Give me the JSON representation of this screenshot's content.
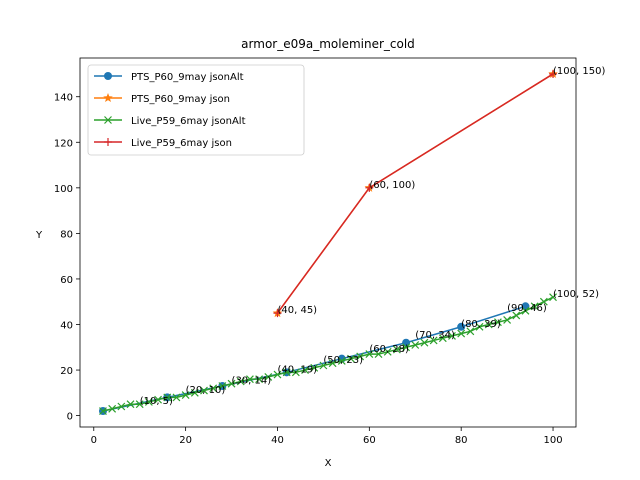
{
  "chart_data": {
    "type": "line",
    "title": "armor_e09a_moleminer_cold",
    "xlabel": "X",
    "ylabel": "Y",
    "xlim": [
      -3,
      105
    ],
    "ylim": [
      -5,
      157
    ],
    "xticks": [
      0,
      20,
      40,
      60,
      80,
      100
    ],
    "yticks": [
      0,
      20,
      40,
      60,
      80,
      100,
      120,
      140
    ],
    "grid": false,
    "legend_position": "upper-left",
    "series": [
      {
        "name": "PTS_P60_9may jsonAlt",
        "color": "#1f77b4",
        "marker": "circle",
        "x": [
          2,
          16,
          28,
          42,
          54,
          68,
          80,
          94
        ],
        "y": [
          2,
          8,
          13,
          19,
          25,
          32,
          39,
          48
        ]
      },
      {
        "name": "PTS_P60_9may json",
        "color": "#ff7f0e",
        "marker": "star",
        "x": [
          40,
          60,
          100
        ],
        "y": [
          45,
          100,
          150
        ]
      },
      {
        "name": "Live_P59_6may jsonAlt",
        "color": "#2ca02c",
        "marker": "x",
        "x": [
          2,
          4,
          6,
          8,
          10,
          12,
          14,
          16,
          18,
          20,
          22,
          24,
          26,
          28,
          30,
          32,
          34,
          36,
          38,
          40,
          42,
          44,
          46,
          48,
          50,
          52,
          54,
          56,
          58,
          60,
          62,
          64,
          66,
          68,
          70,
          72,
          74,
          76,
          78,
          80,
          82,
          84,
          86,
          88,
          90,
          92,
          94,
          96,
          98,
          100
        ],
        "y": [
          2,
          3,
          4,
          5,
          5,
          6,
          7,
          8,
          8,
          9,
          10,
          11,
          12,
          13,
          14,
          15,
          16,
          16,
          17,
          18,
          19,
          19,
          20,
          21,
          22,
          23,
          24,
          25,
          26,
          27,
          27,
          28,
          29,
          30,
          31,
          32,
          33,
          34,
          35,
          36,
          37,
          39,
          40,
          41,
          42,
          44,
          46,
          48,
          50,
          52
        ]
      },
      {
        "name": "Live_P59_6may json",
        "color": "#d62728",
        "marker": "plus",
        "x": [
          40,
          60,
          100
        ],
        "y": [
          45,
          100,
          150
        ]
      }
    ],
    "annotations": [
      {
        "x": 10,
        "y": 5,
        "text": "(10, 5)"
      },
      {
        "x": 20,
        "y": 10,
        "text": "(20, 10)"
      },
      {
        "x": 30,
        "y": 14,
        "text": "(30, 14)"
      },
      {
        "x": 40,
        "y": 19,
        "text": "(40, 19)"
      },
      {
        "x": 50,
        "y": 23,
        "text": "(50, 23)"
      },
      {
        "x": 60,
        "y": 28,
        "text": "(60, 28)"
      },
      {
        "x": 70,
        "y": 34,
        "text": "(70, 34)"
      },
      {
        "x": 80,
        "y": 39,
        "text": "(80, 39)"
      },
      {
        "x": 90,
        "y": 46,
        "text": "(90, 46)"
      },
      {
        "x": 100,
        "y": 52,
        "text": "(100, 52)"
      },
      {
        "x": 40,
        "y": 45,
        "text": "(40, 45)"
      },
      {
        "x": 60,
        "y": 100,
        "text": "(60, 100)"
      },
      {
        "x": 100,
        "y": 150,
        "text": "(100, 150)"
      }
    ]
  }
}
